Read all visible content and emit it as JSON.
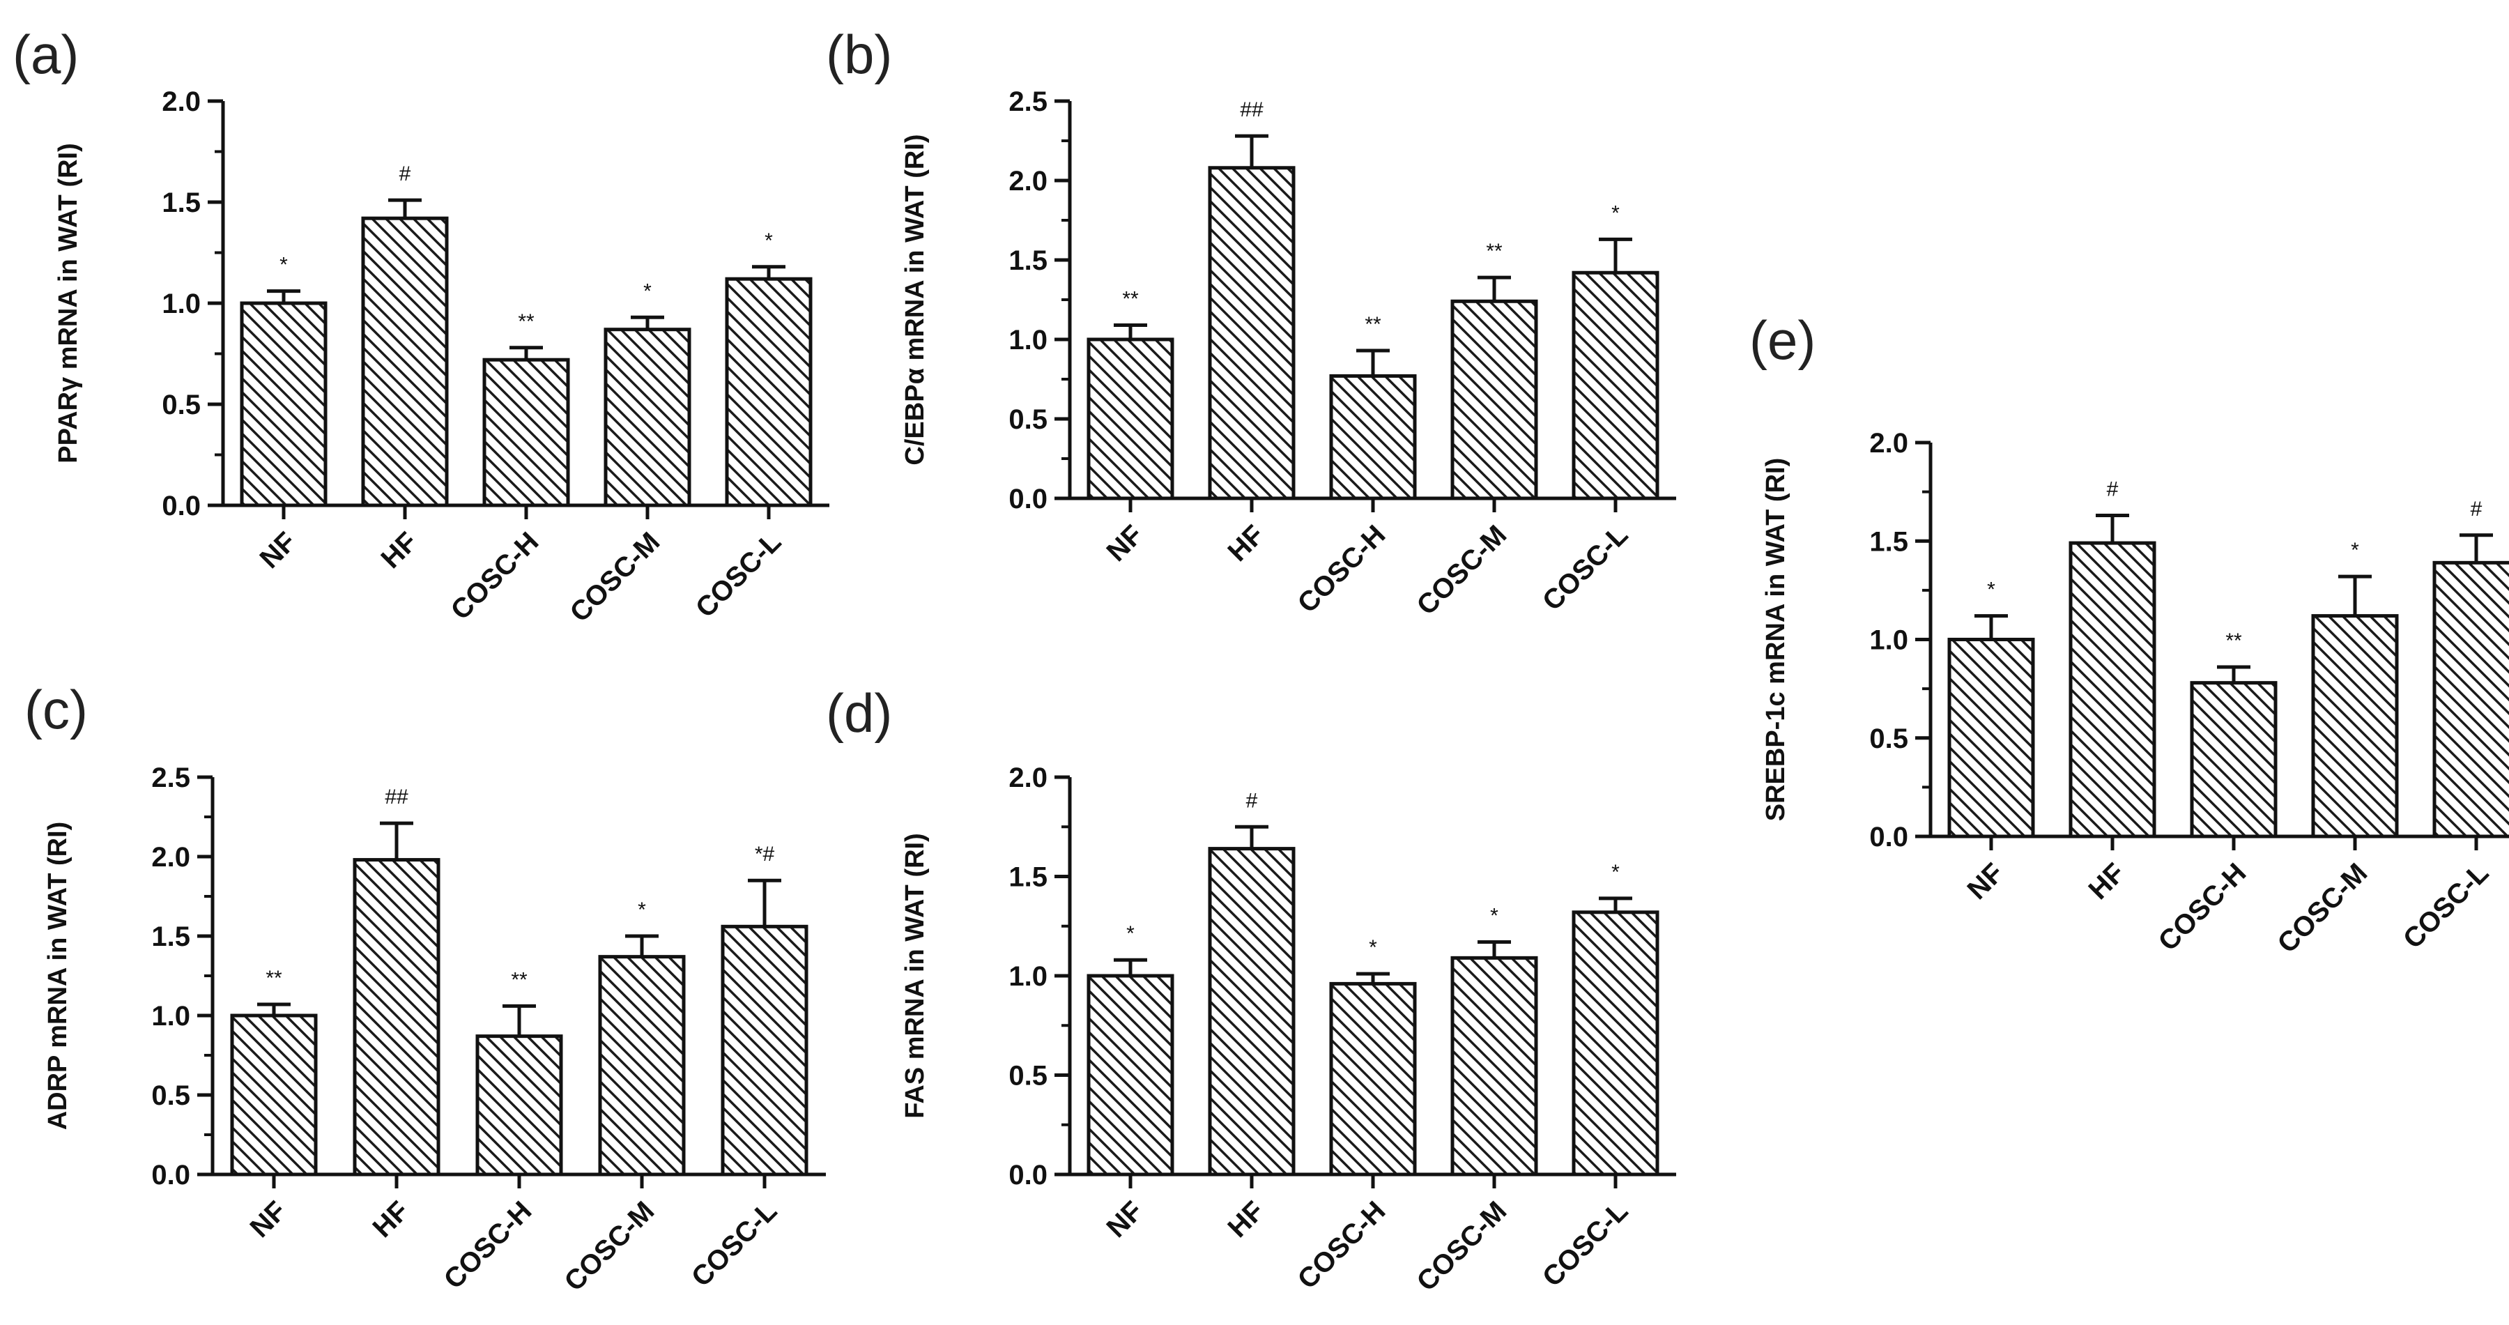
{
  "chart_data": [
    {
      "type": "bar",
      "panel": "(a)",
      "ylabel": "PPARγ mRNA in WAT (RI)",
      "ylim": [
        0,
        2.0
      ],
      "yticks": [
        "0.0",
        "0.5",
        "1.0",
        "1.5",
        "2.0"
      ],
      "categories": [
        "NF",
        "HF",
        "COSC-H",
        "COSC-M",
        "COSC-L"
      ],
      "values": [
        1.0,
        1.42,
        0.72,
        0.87,
        1.12
      ],
      "errors": [
        0.06,
        0.09,
        0.06,
        0.06,
        0.06
      ],
      "significance": [
        "*",
        "#",
        "**",
        "*",
        "*"
      ]
    },
    {
      "type": "bar",
      "panel": "(b)",
      "ylabel": "C/EBPα mRNA in WAT (RI)",
      "ylim": [
        0,
        2.5
      ],
      "yticks": [
        "0.0",
        "0.5",
        "1.0",
        "1.5",
        "2.0",
        "2.5"
      ],
      "categories": [
        "NF",
        "HF",
        "COSC-H",
        "COSC-M",
        "COSC-L"
      ],
      "values": [
        1.0,
        2.08,
        0.77,
        1.24,
        1.42
      ],
      "errors": [
        0.09,
        0.2,
        0.16,
        0.15,
        0.21
      ],
      "significance": [
        "**",
        "##",
        "**",
        "**",
        "*"
      ]
    },
    {
      "type": "bar",
      "panel": "(c)",
      "ylabel": "ADRP mRNA in WAT (RI)",
      "ylim": [
        0,
        2.5
      ],
      "yticks": [
        "0.0",
        "0.5",
        "1.0",
        "1.5",
        "2.0",
        "2.5"
      ],
      "categories": [
        "NF",
        "HF",
        "COSC-H",
        "COSC-M",
        "COSC-L"
      ],
      "values": [
        1.0,
        1.98,
        0.87,
        1.37,
        1.56
      ],
      "errors": [
        0.07,
        0.23,
        0.19,
        0.13,
        0.29
      ],
      "significance": [
        "**",
        "##",
        "**",
        "*",
        "*#"
      ]
    },
    {
      "type": "bar",
      "panel": "(d)",
      "ylabel": "FAS mRNA in WAT (RI)",
      "ylim": [
        0,
        2.0
      ],
      "yticks": [
        "0.0",
        "0.5",
        "1.0",
        "1.5",
        "2.0"
      ],
      "categories": [
        "NF",
        "HF",
        "COSC-H",
        "COSC-M",
        "COSC-L"
      ],
      "values": [
        1.0,
        1.64,
        0.96,
        1.09,
        1.32
      ],
      "errors": [
        0.08,
        0.11,
        0.05,
        0.08,
        0.07
      ],
      "significance": [
        "*",
        "#",
        "*",
        "*",
        "*"
      ]
    },
    {
      "type": "bar",
      "panel": "(e)",
      "ylabel": "SREBP-1c mRNA in WAT (RI)",
      "ylim": [
        0,
        2.0
      ],
      "yticks": [
        "0.0",
        "0.5",
        "1.0",
        "1.5",
        "2.0"
      ],
      "categories": [
        "NF",
        "HF",
        "COSC-H",
        "COSC-M",
        "COSC-L"
      ],
      "values": [
        1.0,
        1.49,
        0.78,
        1.12,
        1.39
      ],
      "errors": [
        0.12,
        0.14,
        0.08,
        0.2,
        0.14
      ],
      "significance": [
        "*",
        "#",
        "**",
        "*",
        "#"
      ]
    }
  ],
  "colors": {
    "bar_fill": "#ffffff",
    "bar_hatch": "#222222",
    "axis": "#111111",
    "text": "#111111"
  }
}
